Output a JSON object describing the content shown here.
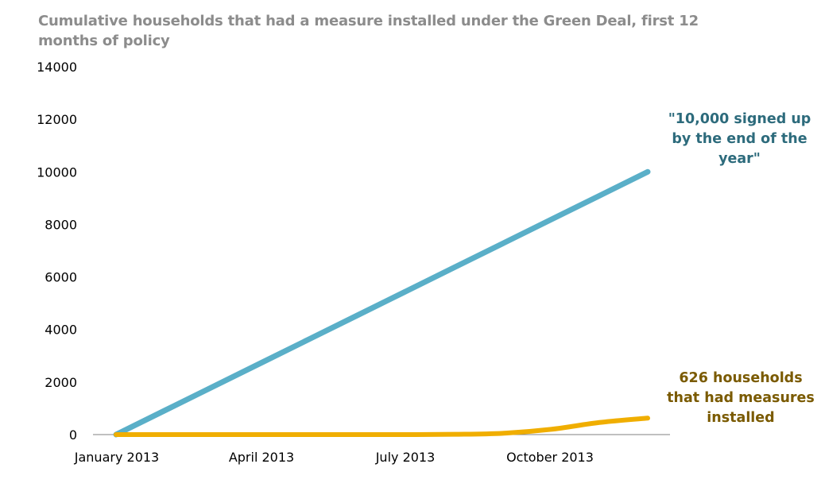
{
  "chart_data": {
    "type": "line",
    "title": "Cumulative households that had a measure installed under the Green Deal, first 12 months of policy",
    "xlabel": "",
    "ylabel": "",
    "ylim": [
      0,
      14000
    ],
    "yticks": [
      "0",
      "2000",
      "4000",
      "6000",
      "8000",
      "10000",
      "12000",
      "14000"
    ],
    "xticks": [
      "January 2013",
      "April 2013",
      "July 2013",
      "October 2013"
    ],
    "x": [
      "Jan 2013",
      "Feb 2013",
      "Mar 2013",
      "Apr 2013",
      "May 2013",
      "Jun 2013",
      "Jul 2013",
      "Aug 2013",
      "Sep 2013",
      "Oct 2013",
      "Nov 2013",
      "Dec 2013"
    ],
    "series": [
      {
        "color": "#5aafc8",
        "values": [
          0,
          909,
          1818,
          2727,
          3636,
          4545,
          5455,
          6364,
          7273,
          8182,
          9091,
          10000
        ]
      },
      {
        "color": "#f0ae00",
        "values": [
          0,
          0,
          0,
          0,
          0,
          0,
          0,
          10,
          50,
          200,
          460,
          626
        ]
      }
    ],
    "annotations": [
      {
        "text": "\"10,000 signed up by the end of the year\"",
        "color": "#2d6b7c"
      },
      {
        "text": "626 households that had measures installed",
        "color": "#7a5a00"
      }
    ],
    "grid": false,
    "legend": "none"
  }
}
